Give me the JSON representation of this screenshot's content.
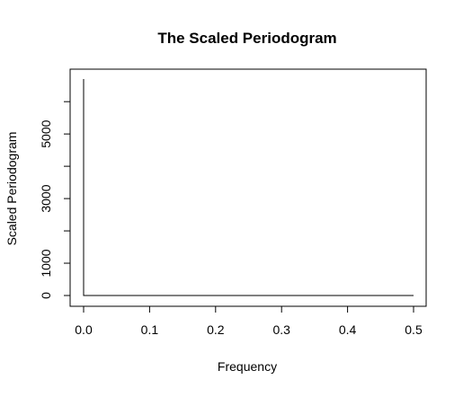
{
  "chart_data": {
    "type": "line",
    "title": "The Scaled Periodogram",
    "xlabel": "Frequency",
    "ylabel": "Scaled Periodogram",
    "xlim": [
      0.0,
      0.5
    ],
    "ylim": [
      0,
      6700
    ],
    "xticks": [
      {
        "value": 0.0,
        "label": "0.0"
      },
      {
        "value": 0.1,
        "label": "0.1"
      },
      {
        "value": 0.2,
        "label": "0.2"
      },
      {
        "value": 0.3,
        "label": "0.3"
      },
      {
        "value": 0.4,
        "label": "0.4"
      },
      {
        "value": 0.5,
        "label": "0.5"
      }
    ],
    "yticks": [
      {
        "value": 0,
        "label": "0"
      },
      {
        "value": 1000,
        "label": "1000"
      },
      {
        "value": 2000,
        "label": ""
      },
      {
        "value": 3000,
        "label": "3000"
      },
      {
        "value": 4000,
        "label": ""
      },
      {
        "value": 5000,
        "label": "5000"
      },
      {
        "value": 6000,
        "label": ""
      }
    ],
    "series": [
      {
        "x": [
          0.0,
          0.0,
          0.5
        ],
        "y": [
          6700,
          0,
          0
        ]
      }
    ],
    "grid": false,
    "legend": "none",
    "colors": {
      "line": "#000000",
      "axis": "#000000",
      "background": "#ffffff"
    }
  }
}
